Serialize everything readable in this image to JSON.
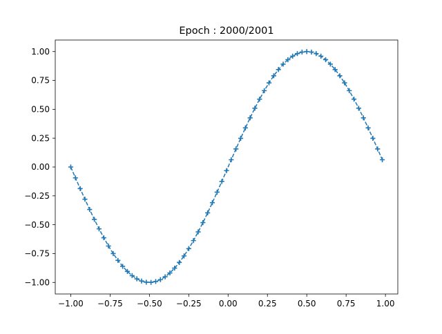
{
  "chart_data": {
    "type": "line",
    "title": "Epoch : 2000/2001",
    "xlabel": "",
    "ylabel": "",
    "xlim": [
      -1.0985,
      1.0785
    ],
    "ylim": [
      -1.1,
      1.1
    ],
    "grid": false,
    "legend": "none",
    "x_ticks": [
      -1.0,
      -0.75,
      -0.5,
      -0.25,
      0.0,
      0.25,
      0.5,
      0.75,
      1.0
    ],
    "x_tick_labels": [
      "−1.00",
      "−0.75",
      "−0.50",
      "−0.25",
      "0.00",
      "0.25",
      "0.50",
      "0.75",
      "1.00"
    ],
    "y_ticks": [
      1.0,
      0.75,
      0.5,
      0.25,
      0.0,
      -0.25,
      -0.5,
      -0.75,
      -1.0
    ],
    "y_tick_labels": [
      "1.00",
      "0.75",
      "0.50",
      "0.25",
      "0.00",
      "−0.25",
      "−0.50",
      "−0.75",
      "−1.00"
    ],
    "series": [
      {
        "kind": "target-markers",
        "marker": "+",
        "color": "#1f77b4",
        "x_start": -1.0,
        "x_step": 0.03,
        "x": [],
        "y": []
      },
      {
        "kind": "prediction-line",
        "linestyle": "dashed",
        "color": "#1f77b4",
        "x": [],
        "y": []
      }
    ]
  },
  "colors": {
    "series": "#1f77b4",
    "axes": "#000000",
    "background": "#ffffff"
  }
}
